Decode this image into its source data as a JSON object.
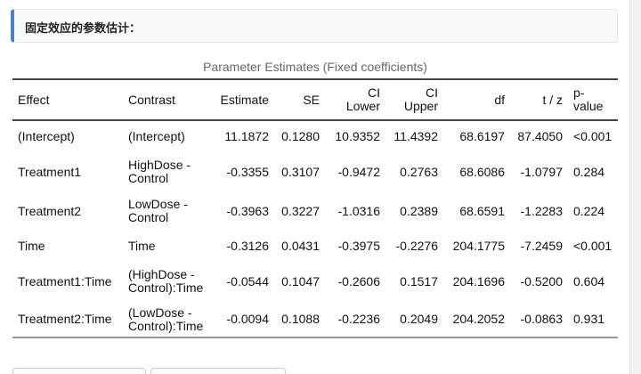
{
  "header": {
    "title": "固定效应的参数估计："
  },
  "table": {
    "caption": "Parameter Estimates (Fixed coefficients)",
    "columns": [
      "Effect",
      "Contrast",
      "Estimate",
      "SE",
      "CI Lower",
      "CI Upper",
      "df",
      "t / z",
      "p-value"
    ],
    "rows": [
      [
        "(Intercept)",
        "(Intercept)",
        "11.1872",
        "0.1280",
        "10.9352",
        "11.4392",
        "68.6197",
        "87.4050",
        "<0.001"
      ],
      [
        "Treatment1",
        "HighDose - Control",
        "-0.3355",
        "0.3107",
        "-0.9472",
        "0.2763",
        "68.6086",
        "-1.0797",
        "0.284"
      ],
      [
        "Treatment2",
        "LowDose - Control",
        "-0.3963",
        "0.3227",
        "-1.0316",
        "0.2389",
        "68.6591",
        "-1.2283",
        "0.224"
      ],
      [
        "Time",
        "Time",
        "-0.3126",
        "0.0431",
        "-0.3975",
        "-0.2276",
        "204.1775",
        "-7.2459",
        "<0.001"
      ],
      [
        "Treatment1:Time",
        "(HighDose - Control):Time",
        "-0.0544",
        "0.1047",
        "-0.2606",
        "0.1517",
        "204.1696",
        "-0.5200",
        "0.604"
      ],
      [
        "Treatment2:Time",
        "(LowDose - Control):Time",
        "-0.0094",
        "0.1088",
        "-0.2236",
        "0.2049",
        "204.2052",
        "-0.0863",
        "0.931"
      ]
    ]
  }
}
